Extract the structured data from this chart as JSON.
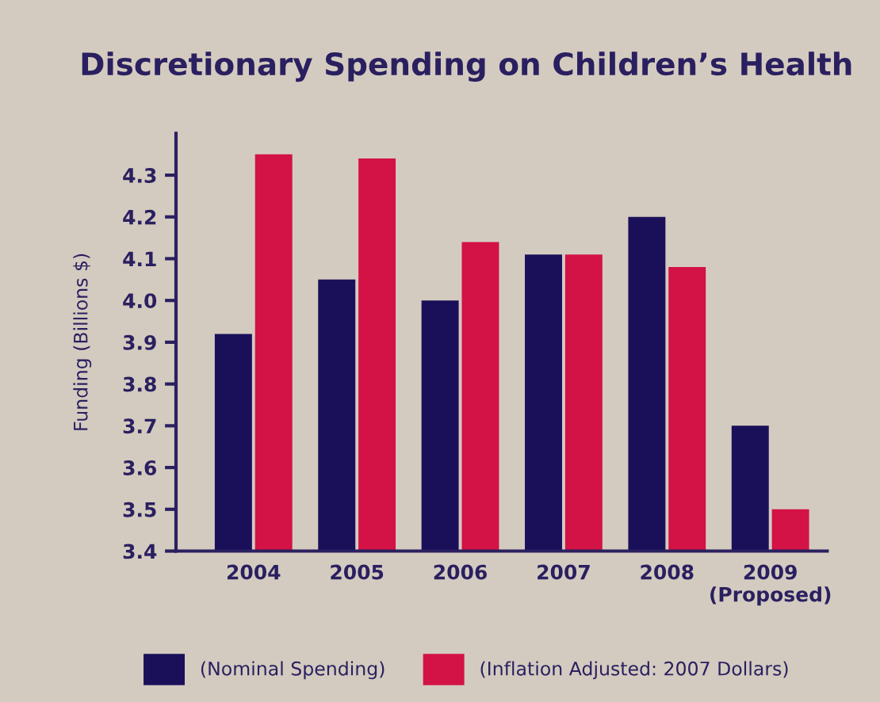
{
  "chart_data": {
    "type": "bar",
    "title": "Discretionary Spending on Children’s Health",
    "ylabel": "Funding (Billions $)",
    "categories": [
      "2004",
      "2005",
      "2006",
      "2007",
      "2008",
      "2009\n(Proposed)"
    ],
    "series": [
      {
        "name": "(Nominal Spending)",
        "color": "#1a105a",
        "values": [
          3.92,
          4.05,
          4.0,
          4.11,
          4.2,
          3.7
        ]
      },
      {
        "name": "(Inflation Adjusted: 2007 Dollars)",
        "color": "#d31245",
        "values": [
          4.35,
          4.34,
          4.14,
          4.11,
          4.08,
          3.5
        ]
      }
    ],
    "ylim": [
      3.4,
      4.4
    ],
    "yticks": [
      3.4,
      3.5,
      3.6,
      3.7,
      3.8,
      3.9,
      {
        "value": 4.0,
        "label": "4.0"
      },
      4.1,
      4.2,
      4.3
    ],
    "grid": false,
    "legend": "bottom"
  }
}
